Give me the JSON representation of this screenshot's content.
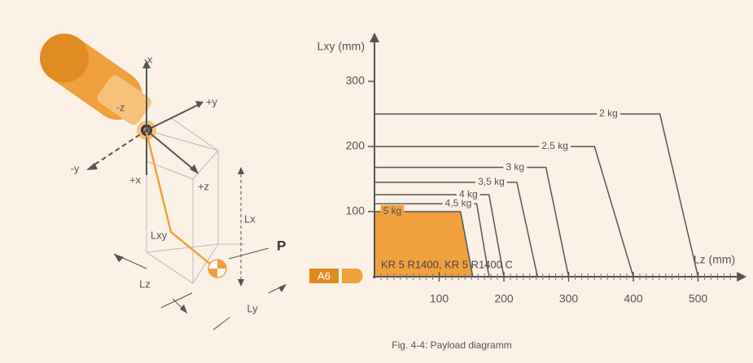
{
  "chart_data": {
    "type": "line",
    "x_label": "Lz (mm)",
    "y_label": "Lxy (mm)",
    "xlim": [
      0,
      560
    ],
    "ylim": [
      0,
      360
    ],
    "xticks": [
      100,
      200,
      300,
      400,
      500
    ],
    "yticks": [
      100,
      200,
      300
    ],
    "fill_color": "#f0a03c",
    "robot_label": "KR 5 R1400, KR 5 R1400 C",
    "flange_label": "A6",
    "series": [
      {
        "name": "5 kg",
        "color": "#555555",
        "x": [
          0,
          133,
          152
        ],
        "values": [
          100,
          100,
          0
        ]
      },
      {
        "name": "4,5 kg",
        "color": "#555555",
        "x": [
          0,
          158,
          177
        ],
        "values": [
          112,
          112,
          0
        ]
      },
      {
        "name": "4 kg",
        "color": "#555555",
        "x": [
          0,
          177,
          200
        ],
        "values": [
          126,
          126,
          0
        ]
      },
      {
        "name": "3,5 kg",
        "color": "#555555",
        "x": [
          0,
          220,
          252
        ],
        "values": [
          145,
          145,
          0
        ]
      },
      {
        "name": "3 kg",
        "color": "#555555",
        "x": [
          0,
          265,
          300
        ],
        "values": [
          168,
          168,
          0
        ]
      },
      {
        "name": "2,5 kg",
        "color": "#555555",
        "x": [
          0,
          340,
          400
        ],
        "values": [
          200,
          200,
          0
        ]
      },
      {
        "name": "2 kg",
        "color": "#555555",
        "x": [
          0,
          441,
          500
        ],
        "values": [
          250,
          250,
          0
        ]
      }
    ]
  },
  "diagram": {
    "axes": [
      "-x",
      "+y",
      "-z",
      "-y",
      "+x",
      "+z"
    ],
    "dimensions": [
      "Lx",
      "Lxy",
      "Lz",
      "Ly"
    ],
    "point": "P"
  },
  "caption": "Fig. 4-4: Payload diagramm"
}
